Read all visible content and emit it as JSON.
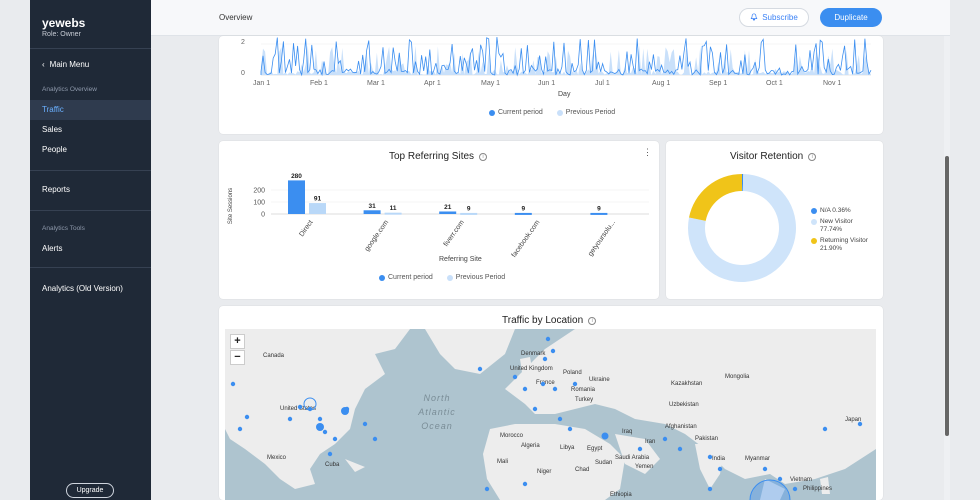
{
  "sidebar": {
    "site_name": "yewebs",
    "role": "Role: Owner",
    "back_label": "Main Menu",
    "section_overview": "Analytics Overview",
    "items": [
      {
        "label": "Traffic"
      },
      {
        "label": "Sales"
      },
      {
        "label": "People"
      },
      {
        "label": "Reports"
      }
    ],
    "section_tools": "Analytics Tools",
    "alerts": "Alerts",
    "old_version": "Analytics (Old Version)",
    "upgrade": "Upgrade"
  },
  "header": {
    "breadcrumb": "Overview",
    "subscribe": "Subscribe",
    "duplicate": "Duplicate"
  },
  "timeline": {
    "y_ticks": [
      "2",
      "0"
    ],
    "x_ticks": [
      "Jan 1",
      "Feb 1",
      "Mar 1",
      "Apr 1",
      "May 1",
      "Jun 1",
      "Jul 1",
      "Aug 1",
      "Sep 1",
      "Oct 1",
      "Nov 1"
    ],
    "xlabel": "Day",
    "legend_current": "Current period",
    "legend_previous": "Previous Period"
  },
  "referring": {
    "title": "Top Referring Sites",
    "ylabel": "Site Sessions",
    "xlabel": "Referring Site",
    "legend_current": "Current period",
    "legend_previous": "Previous Period"
  },
  "retention": {
    "title": "Visitor Retention",
    "legend": [
      {
        "label": "N/A 0.36%",
        "color": "#3b8ef0"
      },
      {
        "label": "New Visitor 77.74%",
        "color": "#cfe4fa"
      },
      {
        "label": "Returning Visitor 21.90%",
        "color": "#f0c419"
      }
    ]
  },
  "location": {
    "title": "Traffic by Location",
    "zoom_in": "+",
    "zoom_out": "−",
    "ocean_label": "North Atlantic Ocean",
    "places": [
      "Canada",
      "United States",
      "Mexico",
      "Cuba",
      "Denmark",
      "United Kingdom",
      "France",
      "Poland",
      "Ukraine",
      "Romania",
      "Turkey",
      "Kazakhstan",
      "Uzbekistan",
      "Morocco",
      "Algeria",
      "Libya",
      "Egypt",
      "Iraq",
      "Iran",
      "Afghanistan",
      "Pakistan",
      "Saudi Arabia",
      "India",
      "Myanmar",
      "Vietnam",
      "Philippines",
      "Niger",
      "Chad",
      "Ethiopia",
      "Yemen",
      "Japan",
      "Sudan",
      "Mali",
      "Mongolia"
    ]
  },
  "chart_data": [
    {
      "type": "bar",
      "title": "Top Referring Sites",
      "xlabel": "Referring Site",
      "ylabel": "Site Sessions",
      "categories": [
        "Direct",
        "google.com",
        "fiverr.com",
        "facebook.com",
        "getyoursolu..."
      ],
      "series": [
        {
          "name": "Current period",
          "values": [
            280,
            31,
            21,
            9,
            9
          ],
          "color": "#3b8ef0"
        },
        {
          "name": "Previous Period",
          "values": [
            91,
            11,
            9,
            0,
            0
          ],
          "color": "#b9d8f8"
        }
      ],
      "y_ticks": [
        0,
        100,
        200
      ],
      "ylim": [
        0,
        300
      ]
    },
    {
      "type": "pie",
      "title": "Visitor Retention",
      "labels": [
        "N/A",
        "New Visitor",
        "Returning Visitor"
      ],
      "values": [
        0.36,
        77.74,
        21.9
      ],
      "colors": [
        "#3b8ef0",
        "#cfe4fa",
        "#f0c419"
      ]
    }
  ]
}
